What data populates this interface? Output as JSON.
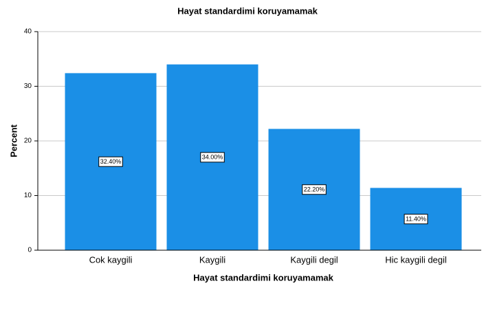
{
  "chart_data": {
    "type": "bar",
    "title": "Hayat standardimi koruyamamak",
    "x_label": "Hayat standardimi koruyamamak",
    "y_label": "Percent",
    "categories": [
      "Cok kaygili",
      "Kaygili",
      "Kaygili degil",
      "Hic kaygili degil"
    ],
    "values": [
      32.4,
      34.0,
      22.2,
      11.4
    ],
    "value_labels": [
      "32.40%",
      "34.00%",
      "22.20%",
      "11.40%"
    ],
    "color": "#1b8fe6",
    "ylim": [
      0,
      40
    ],
    "yticks": [
      0,
      10,
      20,
      30,
      40
    ],
    "grid": true
  }
}
